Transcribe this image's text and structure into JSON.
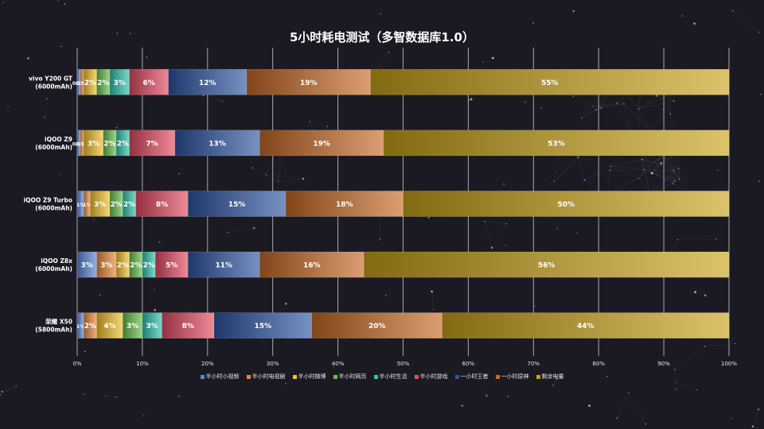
{
  "chart_data": {
    "type": "bar",
    "orientation": "horizontal",
    "stacked": true,
    "title": "5小时耗电测试（多智数据库1.0）",
    "categories": [
      [
        "vivo Y200 GT",
        "(6000mAh)"
      ],
      [
        "iQOO Z9",
        "(6000mAh)"
      ],
      [
        "iQOO Z9 Turbo",
        "(6000mAh)"
      ],
      [
        "iQOO Z8x",
        "(6000mAh)"
      ],
      [
        "荣耀 X50",
        "(5800mAh)"
      ]
    ],
    "series": [
      {
        "name": "半小时小视频",
        "color": "#5b86d8",
        "values": [
          0.5,
          0.5,
          1,
          3,
          1
        ],
        "labels": [
          "0.5%",
          "0.5%",
          "1%",
          "3%",
          "1%"
        ]
      },
      {
        "name": "半小时电视剧",
        "color": "#e8893a",
        "values": [
          0.5,
          0.5,
          1,
          3,
          2
        ],
        "labels": [
          "0.5%",
          "0.5%",
          "1%",
          "3%",
          "2%"
        ]
      },
      {
        "name": "半小时微博",
        "color": "#f3c22a",
        "values": [
          2,
          3,
          3,
          2,
          4
        ],
        "labels": [
          "2%",
          "3%",
          "3%",
          "2%",
          "4%"
        ]
      },
      {
        "name": "半小时网页",
        "color": "#67bd4c",
        "values": [
          2,
          2,
          2,
          2,
          3
        ],
        "labels": [
          "2%",
          "2%",
          "2%",
          "2%",
          "3%"
        ]
      },
      {
        "name": "半小时生活",
        "color": "#2fc3ad",
        "values": [
          3,
          2,
          2,
          2,
          3
        ],
        "labels": [
          "3%",
          "2%",
          "2%",
          "2%",
          "3%"
        ]
      },
      {
        "name": "半小时游戏",
        "color": "#e54a62",
        "values": [
          6,
          7,
          8,
          5,
          8
        ],
        "labels": [
          "6%",
          "7%",
          "8%",
          "5%",
          "8%"
        ]
      },
      {
        "name": "一小时王者",
        "color": "#3055a3",
        "values": [
          12,
          13,
          15,
          11,
          15
        ],
        "labels": [
          "12%",
          "13%",
          "15%",
          "11%",
          "15%"
        ]
      },
      {
        "name": "一小时原神",
        "color": "#c76a26",
        "values": [
          19,
          19,
          18,
          16,
          20
        ],
        "labels": [
          "19%",
          "19%",
          "18%",
          "16%",
          "20%"
        ]
      },
      {
        "name": "剩余电量",
        "color": "#c9a21b",
        "values": [
          55,
          53,
          50,
          56,
          44
        ],
        "labels": [
          "55%",
          "53%",
          "50%",
          "56%",
          "44%"
        ]
      }
    ],
    "xlim": [
      0,
      100
    ],
    "x_ticks": [
      "0%",
      "10%",
      "20%",
      "30%",
      "40%",
      "50%",
      "60%",
      "70%",
      "80%",
      "90%",
      "100%"
    ],
    "grid": true,
    "legend_position": "bottom"
  }
}
